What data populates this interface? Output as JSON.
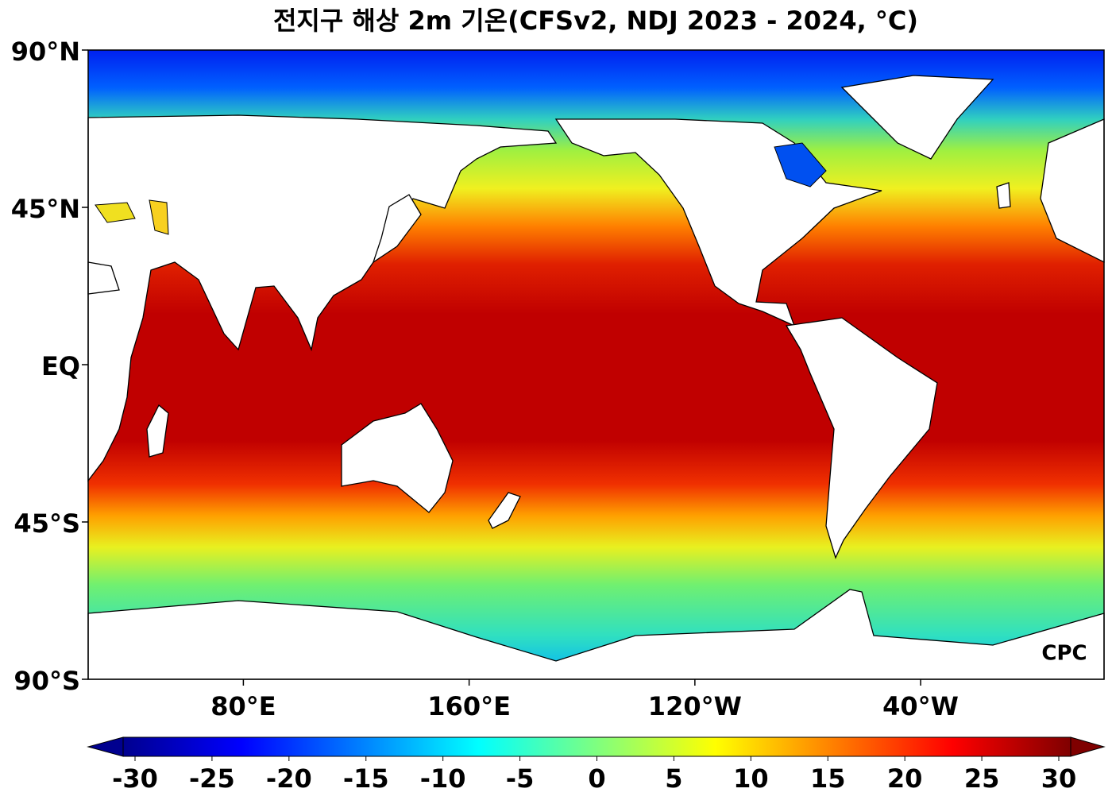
{
  "title": "전지구 해상 2m 기온(CFSv2, NDJ 2023 - 2024, °C)",
  "map": {
    "xlim": [
      25,
      385
    ],
    "ylim": [
      -90,
      90
    ],
    "yticks": [
      {
        "value": 90,
        "label": "90°N"
      },
      {
        "value": 45,
        "label": "45°N"
      },
      {
        "value": 0,
        "label": "EQ"
      },
      {
        "value": -45,
        "label": "45°S"
      },
      {
        "value": -90,
        "label": "90°S"
      }
    ],
    "xticks": [
      {
        "value": 80,
        "label": "80°E"
      },
      {
        "value": 160,
        "label": "160°E"
      },
      {
        "value": -120,
        "label": "120°W"
      },
      {
        "value": -40,
        "label": "40°W"
      }
    ],
    "logo": "CPC"
  },
  "colorbar": {
    "lim": [
      -30,
      30
    ],
    "ticks": [
      -30,
      -25,
      -20,
      -15,
      -10,
      -5,
      0,
      5,
      10,
      15,
      20,
      25,
      30
    ],
    "colors": [
      "#00008f",
      "#0000ff",
      "#007fff",
      "#00ffff",
      "#7fff7f",
      "#ffff00",
      "#ff7f00",
      "#ff0000",
      "#7f0000"
    ]
  }
}
